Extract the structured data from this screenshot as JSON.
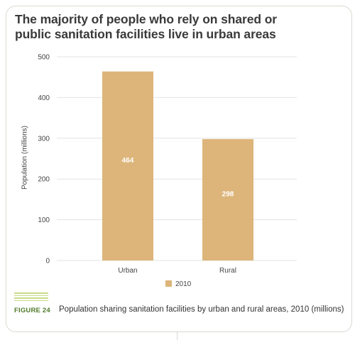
{
  "title_lines": [
    "The majority of people who rely on shared or",
    "public sanitation facilities live in urban areas"
  ],
  "figure": {
    "label": "FIGURE 24",
    "caption": "Population sharing sanitation facilities by urban and rural areas, 2010 (millions)"
  },
  "colors": {
    "bar": "#ddb57a",
    "grid": "#e3e3e3",
    "figure_label": "#4f7a2a",
    "rule": "#c8dc8a"
  },
  "chart_data": {
    "type": "bar",
    "categories": [
      "Urban",
      "Rural"
    ],
    "series": [
      {
        "name": "2010",
        "values": [
          464,
          298
        ]
      }
    ],
    "data_labels": [
      "464",
      "298"
    ],
    "ylabel": "Population (millions)",
    "xlabel": "",
    "ylim": [
      0,
      500
    ],
    "yticks": [
      0,
      100,
      200,
      300,
      400,
      500
    ],
    "grid": true,
    "legend_position": "bottom"
  }
}
